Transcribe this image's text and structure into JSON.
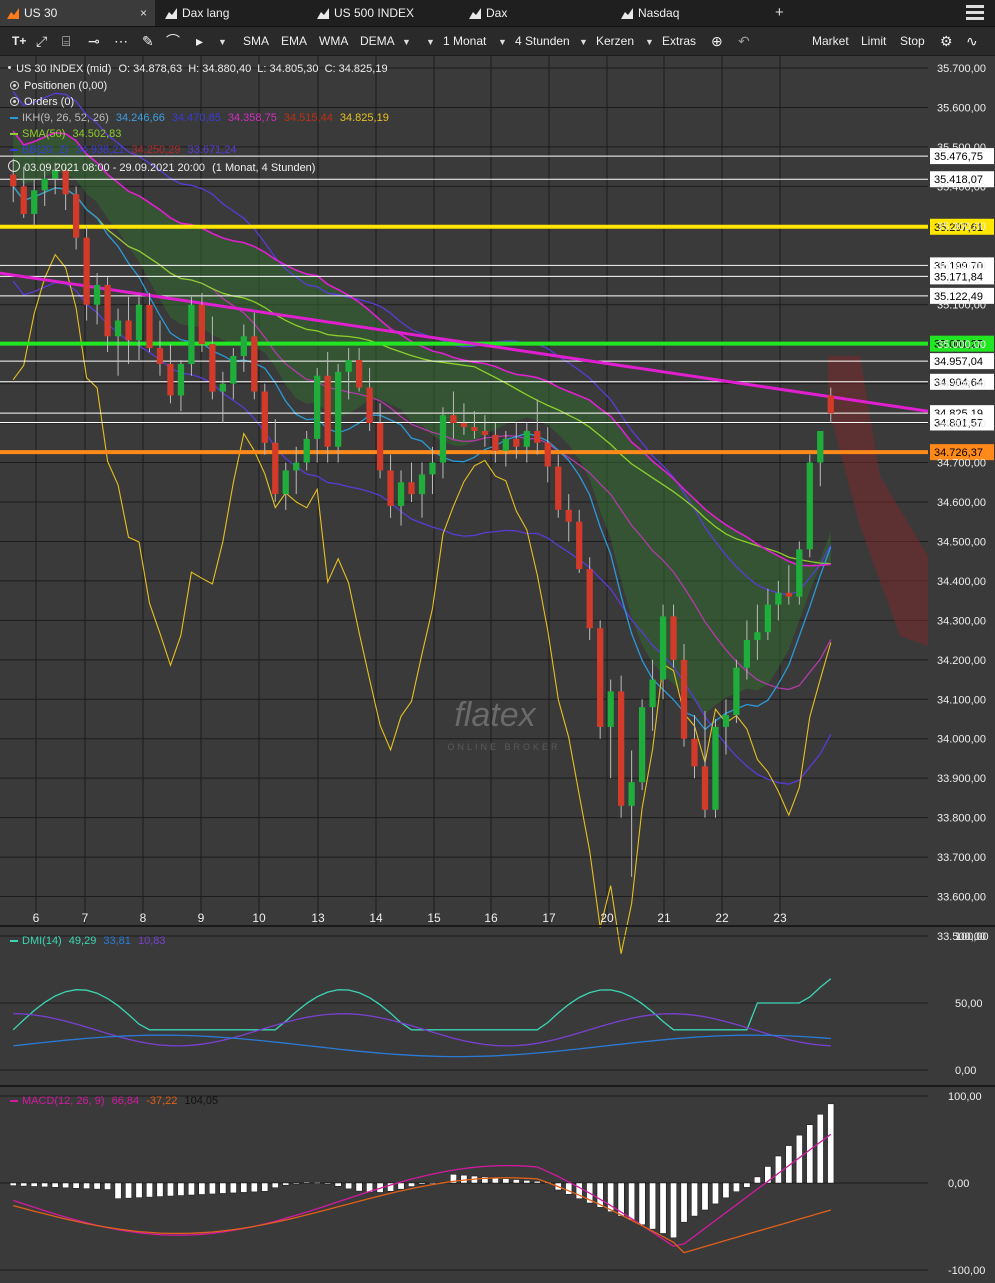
{
  "tabs": [
    {
      "label": "US 30",
      "active": true,
      "close": "×"
    },
    {
      "label": "Dax lang",
      "active": false
    },
    {
      "label": "US 500 INDEX",
      "active": false
    },
    {
      "label": "Dax",
      "active": false
    },
    {
      "label": "Nasdaq",
      "active": false
    }
  ],
  "tab_add": "+",
  "toolbar": {
    "text_tool": "T+",
    "ma_buttons": [
      "SMA",
      "EMA",
      "WMA",
      "DEMA"
    ],
    "period": "1 Monat",
    "interval": "4 Stunden",
    "chart_style": "Kerzen",
    "extras": "Extras",
    "order_buttons": [
      "Market",
      "Limit",
      "Stop"
    ]
  },
  "info": {
    "instrument": "US 30 INDEX (mid)",
    "ohlc": "O: 34.878,63  H: 34.880,40  L: 34.805,30  C: 34.825,19",
    "positions": "Positionen (0,00)",
    "orders": "Orders (0)",
    "ikh_label": "IKH(9, 26, 52, 26)",
    "ikh_values": [
      "34.246,66",
      "34.470,85",
      "34.358,75",
      "34.515,44",
      "34.825,19"
    ],
    "sma_label": "SMA(50)",
    "sma_value": "34.502,83",
    "bb_label": "BB(20, 2)",
    "bb_values": [
      "34.938,21",
      "34.250,29",
      "33.671,24"
    ],
    "range": "03.09.2021 08:00 - 29.09.2021 20:00",
    "range_detail": "(1 Monat, 4 Stunden)",
    "dmi_label": "DMI(14)",
    "dmi_values": [
      "49,29",
      "33,81",
      "10,83"
    ],
    "macd_label": "MACD(12, 26, 9)",
    "macd_values": [
      "66,84",
      "-37,22",
      "104,05"
    ]
  },
  "colors": {
    "bull": "#1fae3c",
    "bear": "#d23a2a",
    "yellow_line": "#ffe600",
    "green_line": "#22e622",
    "orange_line": "#ff8a1a",
    "trend_line": "#e020d0",
    "sma": "#8ccf2a",
    "bb": "#5a3bd6",
    "bb_mid": "#b23aa8",
    "dmi_plus": "#3ad6b4",
    "dmi_minus": "#7a40d0",
    "adx": "#2a7ad6",
    "macd": "#d21aa0",
    "signal": "#e0601a",
    "osc": "#e6c020",
    "cloud_bull": "#2f6a2f",
    "cloud_bear": "#7a2a2a"
  },
  "watermark": {
    "main": "flatex",
    "sub": "ONLINE BROKER"
  },
  "chart_data": {
    "type": "candlestick",
    "timeframe": "4 Stunden",
    "y_axis": {
      "min": 33500,
      "max": 35700,
      "ticks": [
        "35.700,00",
        "35.600,00",
        "35.500,00",
        "35.400,00",
        "35.300,00",
        "35.200,00",
        "35.100,00",
        "35.000,00",
        "34.900,00",
        "34.800,00",
        "34.700,00",
        "34.600,00",
        "34.500,00",
        "34.400,00",
        "34.300,00",
        "34.200,00",
        "34.100,00",
        "34.000,00",
        "33.900,00",
        "33.800,00",
        "33.700,00",
        "33.600,00",
        "33.500,00"
      ]
    },
    "x_labels": [
      "6",
      "7",
      "8",
      "9",
      "10",
      "13",
      "14",
      "15",
      "16",
      "17",
      "20",
      "21",
      "22",
      "23"
    ],
    "candles": [
      [
        35430,
        35470,
        35360,
        35400
      ],
      [
        35400,
        35450,
        35320,
        35330
      ],
      [
        35330,
        35420,
        35300,
        35390
      ],
      [
        35390,
        35440,
        35350,
        35420
      ],
      [
        35420,
        35460,
        35380,
        35440
      ],
      [
        35440,
        35450,
        35340,
        35380
      ],
      [
        35380,
        35400,
        35240,
        35270
      ],
      [
        35270,
        35300,
        35060,
        35100
      ],
      [
        35100,
        35180,
        35050,
        35150
      ],
      [
        35150,
        35170,
        34980,
        35020
      ],
      [
        35020,
        35090,
        34920,
        35060
      ],
      [
        35060,
        35120,
        34950,
        35010
      ],
      [
        35010,
        35120,
        34960,
        35100
      ],
      [
        35100,
        35130,
        34980,
        34990
      ],
      [
        34990,
        35060,
        34920,
        34950
      ],
      [
        34950,
        35000,
        34850,
        34870
      ],
      [
        34870,
        34960,
        34830,
        34950
      ],
      [
        34950,
        35120,
        34920,
        35100
      ],
      [
        35100,
        35130,
        34980,
        35000
      ],
      [
        35000,
        35070,
        34860,
        34880
      ],
      [
        34880,
        34930,
        34800,
        34900
      ],
      [
        34900,
        34990,
        34860,
        34970
      ],
      [
        34970,
        35050,
        34930,
        35020
      ],
      [
        35020,
        35080,
        34860,
        34880
      ],
      [
        34880,
        34900,
        34720,
        34750
      ],
      [
        34750,
        34810,
        34600,
        34620
      ],
      [
        34620,
        34700,
        34580,
        34680
      ],
      [
        34680,
        34740,
        34620,
        34700
      ],
      [
        34700,
        34780,
        34680,
        34760
      ],
      [
        34760,
        34940,
        34700,
        34920
      ],
      [
        34920,
        34980,
        34700,
        34740
      ],
      [
        34740,
        34950,
        34700,
        34930
      ],
      [
        34930,
        34990,
        34860,
        34960
      ],
      [
        34960,
        34990,
        34880,
        34890
      ],
      [
        34890,
        34940,
        34780,
        34800
      ],
      [
        34800,
        34850,
        34660,
        34680
      ],
      [
        34680,
        34720,
        34560,
        34590
      ],
      [
        34590,
        34680,
        34540,
        34650
      ],
      [
        34650,
        34700,
        34600,
        34620
      ],
      [
        34620,
        34700,
        34560,
        34670
      ],
      [
        34670,
        34740,
        34620,
        34700
      ],
      [
        34700,
        34840,
        34660,
        34820
      ],
      [
        34820,
        34880,
        34760,
        34800
      ],
      [
        34800,
        34850,
        34770,
        34790
      ],
      [
        34790,
        34830,
        34760,
        34780
      ],
      [
        34780,
        34820,
        34740,
        34770
      ],
      [
        34770,
        34800,
        34700,
        34730
      ],
      [
        34730,
        34780,
        34690,
        34760
      ],
      [
        34760,
        34800,
        34710,
        34740
      ],
      [
        34740,
        34800,
        34700,
        34780
      ],
      [
        34780,
        34860,
        34720,
        34750
      ],
      [
        34750,
        34790,
        34650,
        34690
      ],
      [
        34690,
        34720,
        34560,
        34580
      ],
      [
        34580,
        34620,
        34500,
        34550
      ],
      [
        34550,
        34580,
        34420,
        34430
      ],
      [
        34430,
        34460,
        34250,
        34280
      ],
      [
        34280,
        34300,
        34000,
        34030
      ],
      [
        34030,
        34150,
        33900,
        34120
      ],
      [
        34120,
        34160,
        33800,
        33830
      ],
      [
        33830,
        33970,
        33650,
        33890
      ],
      [
        33890,
        34100,
        33870,
        34080
      ],
      [
        34080,
        34200,
        34020,
        34150
      ],
      [
        34150,
        34340,
        34100,
        34310
      ],
      [
        34310,
        34340,
        34180,
        34200
      ],
      [
        34200,
        34240,
        33980,
        34000
      ],
      [
        34000,
        34060,
        33900,
        33930
      ],
      [
        33930,
        34070,
        33800,
        33820
      ],
      [
        33820,
        34050,
        33800,
        34030
      ],
      [
        34030,
        34100,
        33960,
        34060
      ],
      [
        34060,
        34200,
        34040,
        34180
      ],
      [
        34180,
        34300,
        34150,
        34250
      ],
      [
        34250,
        34340,
        34200,
        34270
      ],
      [
        34270,
        34380,
        34250,
        34340
      ],
      [
        34340,
        34400,
        34300,
        34370
      ],
      [
        34370,
        34440,
        34340,
        34360
      ],
      [
        34360,
        34500,
        34340,
        34480
      ],
      [
        34480,
        34720,
        34460,
        34700
      ],
      [
        34700,
        34780,
        34640,
        34780
      ],
      [
        34870,
        34890,
        34800,
        34825
      ]
    ],
    "horizontal_levels": [
      "35.476,75",
      "35.418,07",
      "35.297,61",
      "35.199,70",
      "35.171,84",
      "35.122,49",
      "35.001,27",
      "34.957,04",
      "34.904,64",
      "34.825,19",
      "34.801,57",
      "34.726,37"
    ],
    "dmi": {
      "ylim": [
        0,
        100
      ],
      "ticks": [
        "100,00",
        "50,00",
        "0,00"
      ]
    },
    "macd": {
      "ylim": [
        -100,
        100
      ],
      "ticks": [
        "100,00",
        "0,00",
        "-100,00"
      ]
    }
  }
}
